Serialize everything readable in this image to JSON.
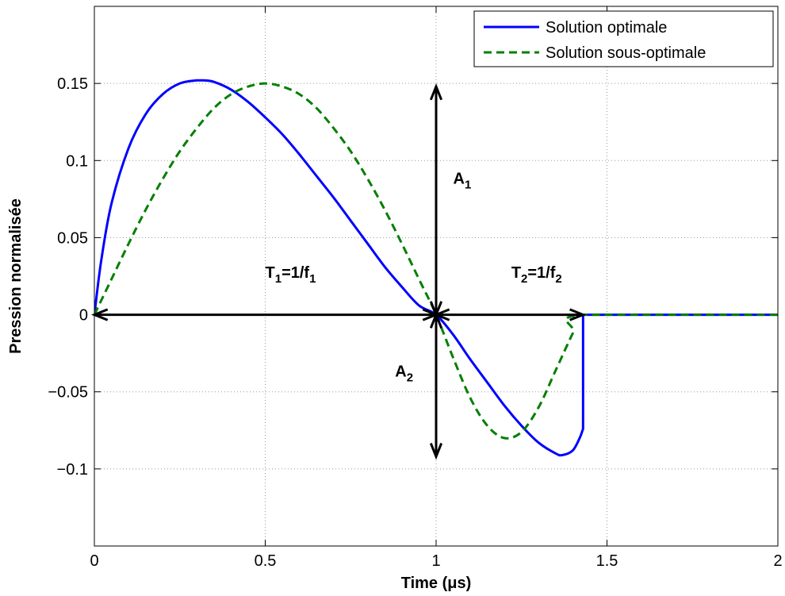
{
  "chart_data": {
    "type": "line",
    "xlabel": "Time (μs)",
    "ylabel": "Pression normalisée",
    "xlim": [
      0,
      2
    ],
    "ylim": [
      -0.15,
      0.2
    ],
    "xticks": [
      0,
      0.5,
      1,
      1.5,
      2
    ],
    "xtick_labels": [
      "0",
      "0.5",
      "1",
      "1.5",
      "2"
    ],
    "yticks": [
      -0.1,
      -0.05,
      0,
      0.05,
      0.1,
      0.15
    ],
    "ytick_labels": [
      "−0.1",
      "−0.05",
      "0",
      "0.05",
      "0.1",
      "0.15"
    ],
    "grid": true,
    "legend_position": "top-right",
    "series": [
      {
        "name": "Solution optimale",
        "color": "#0000ff",
        "style": "solid",
        "x": [
          0,
          0.02,
          0.05,
          0.1,
          0.15,
          0.2,
          0.25,
          0.3,
          0.32,
          0.35,
          0.4,
          0.45,
          0.5,
          0.55,
          0.6,
          0.65,
          0.7,
          0.75,
          0.8,
          0.85,
          0.9,
          0.95,
          1.0,
          1.05,
          1.1,
          1.15,
          1.2,
          1.25,
          1.3,
          1.35,
          1.37,
          1.4,
          1.42,
          1.43,
          1.43,
          1.44,
          2.0
        ],
        "y": [
          0,
          0.035,
          0.072,
          0.108,
          0.13,
          0.143,
          0.15,
          0.152,
          0.152,
          0.151,
          0.146,
          0.138,
          0.128,
          0.117,
          0.104,
          0.09,
          0.076,
          0.061,
          0.046,
          0.031,
          0.018,
          0.006,
          0,
          -0.013,
          -0.029,
          -0.044,
          -0.059,
          -0.072,
          -0.083,
          -0.09,
          -0.091,
          -0.088,
          -0.08,
          -0.074,
          0,
          0,
          0
        ]
      },
      {
        "name": "Solution sous-optimale",
        "color": "#007f00",
        "style": "dashed",
        "x": [
          0,
          0.05,
          0.1,
          0.15,
          0.2,
          0.25,
          0.3,
          0.35,
          0.4,
          0.45,
          0.5,
          0.55,
          0.6,
          0.65,
          0.7,
          0.75,
          0.8,
          0.85,
          0.9,
          0.95,
          1.0,
          1.05,
          1.1,
          1.15,
          1.2,
          1.25,
          1.3,
          1.35,
          1.4,
          1.43,
          2.0
        ],
        "y": [
          0,
          0.023,
          0.046,
          0.068,
          0.088,
          0.106,
          0.121,
          0.134,
          0.143,
          0.148,
          0.15,
          0.148,
          0.143,
          0.134,
          0.121,
          0.106,
          0.088,
          0.068,
          0.046,
          0.023,
          0,
          -0.028,
          -0.054,
          -0.072,
          -0.08,
          -0.076,
          -0.06,
          -0.036,
          -0.012,
          0,
          0
        ]
      }
    ],
    "annotations": {
      "a1": {
        "main": "A",
        "sub": "1",
        "x": 1.05,
        "y": 0.085
      },
      "a2": {
        "main": "A",
        "sub": "2",
        "x": 0.88,
        "y": -0.04
      },
      "t1": {
        "parts": [
          "T",
          "1",
          "=1/f",
          "1"
        ],
        "x": 0.5,
        "y": 0.024
      },
      "t2": {
        "parts": [
          "T",
          "2",
          "=1/f",
          "2"
        ],
        "x": 1.22,
        "y": 0.024
      }
    },
    "arrows": [
      {
        "x1": 0,
        "y1": 0,
        "x2": 1.0,
        "y2": 0,
        "double": true
      },
      {
        "x1": 1.0,
        "y1": 0,
        "x2": 1.43,
        "y2": 0,
        "double": true
      },
      {
        "x1": 1.0,
        "y1": 0,
        "x2": 1.0,
        "y2": 0.148,
        "double": true
      },
      {
        "x1": 1.0,
        "y1": 0,
        "x2": 1.0,
        "y2": -0.092,
        "double": true
      }
    ]
  }
}
